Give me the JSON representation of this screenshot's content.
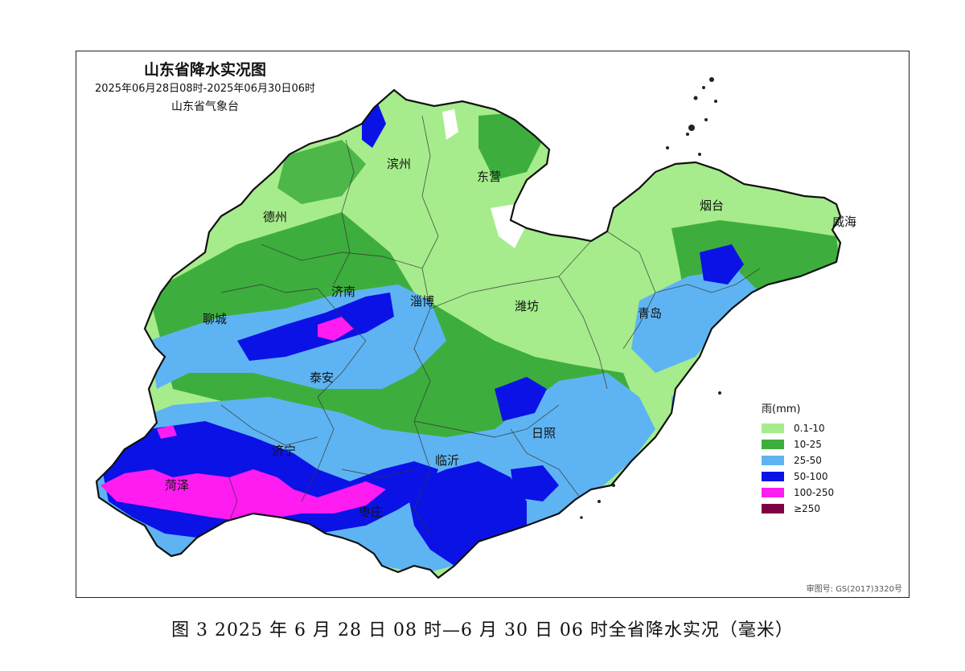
{
  "map": {
    "title": "山东省降水实况图",
    "time_range": "2025年06月28日08时-2025年06月30日06时",
    "organization": "山东省气象台",
    "cities": [
      "滨州",
      "东营",
      "德州",
      "烟台",
      "威海",
      "济南",
      "淄博",
      "潍坊",
      "聊城",
      "青岛",
      "泰安",
      "日照",
      "济宁",
      "临沂",
      "菏泽",
      "枣庄"
    ],
    "legend": {
      "title": "雨(mm)",
      "items": [
        {
          "label": "0.1-10",
          "color": "#a6ec8c"
        },
        {
          "label": "10-25",
          "color": "#3dae3d"
        },
        {
          "label": "25-50",
          "color": "#5eb4f2"
        },
        {
          "label": "50-100",
          "color": "#0b12e6"
        },
        {
          "label": "100-250",
          "color": "#ff1cf0"
        },
        {
          "label": "≥250",
          "color": "#7f0045"
        }
      ]
    },
    "approval_number": "审图号: GS(2017)3320号"
  },
  "caption": "图 3  2025 年 6 月 28 日 08 时—6 月 30 日 06 时全省降水实况（毫米）"
}
